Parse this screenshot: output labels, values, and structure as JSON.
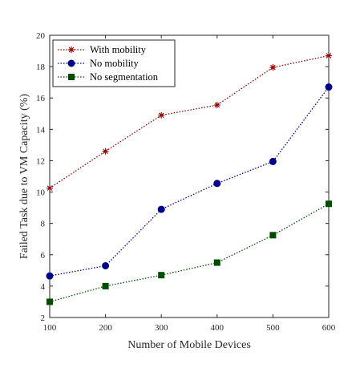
{
  "chart_data": {
    "type": "line",
    "title": "",
    "xlabel": "Number of Mobile Devices",
    "ylabel": "Failed Task due to VM Capacity (%)",
    "x": [
      100,
      200,
      300,
      400,
      500,
      600
    ],
    "xlim": [
      100,
      600
    ],
    "ylim": [
      2,
      20
    ],
    "xticks": [
      100,
      200,
      300,
      400,
      500,
      600
    ],
    "yticks": [
      2,
      4,
      6,
      8,
      10,
      12,
      14,
      16,
      18,
      20
    ],
    "grid": false,
    "legend_position": "top-left",
    "series": [
      {
        "name": "With mobility",
        "marker": "asterisk",
        "color": "#8b0000",
        "values": [
          10.25,
          12.6,
          14.9,
          15.55,
          17.95,
          18.7
        ]
      },
      {
        "name": "No mobility",
        "marker": "circle",
        "color": "#00008b",
        "values": [
          4.65,
          5.3,
          8.9,
          10.55,
          11.95,
          16.7
        ]
      },
      {
        "name": "No segmentation",
        "marker": "square",
        "color": "#004d00",
        "values": [
          3.0,
          4.0,
          4.7,
          5.5,
          7.25,
          9.25
        ]
      }
    ]
  }
}
